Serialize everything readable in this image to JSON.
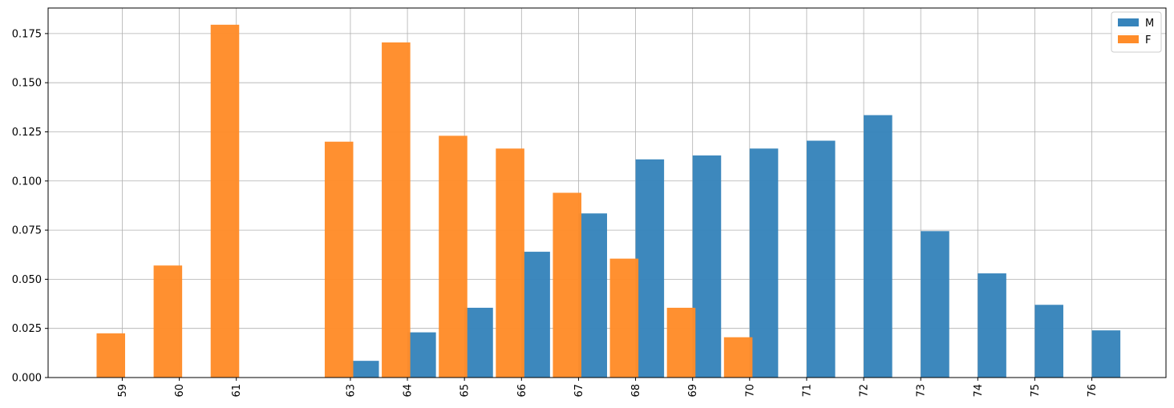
{
  "chart_data": {
    "type": "bar",
    "x": [
      59,
      60,
      61,
      63,
      64,
      65,
      66,
      67,
      68,
      69,
      70,
      71,
      72,
      73,
      74,
      75,
      76
    ],
    "series": [
      {
        "name": "M",
        "color": "#3784bb",
        "values": [
          0,
          0,
          0,
          0.0085,
          0.023,
          0.0355,
          0.064,
          0.0835,
          0.111,
          0.113,
          0.1165,
          0.1205,
          0.1335,
          0.0745,
          0.053,
          0.037,
          0.024
        ]
      },
      {
        "name": "F",
        "color": "#ff8c29",
        "values": [
          0.0225,
          0.057,
          0.1795,
          0.12,
          0.1705,
          0.123,
          0.1165,
          0.094,
          0.0605,
          0.0355,
          0.0205,
          0,
          0,
          0,
          0,
          0,
          0
        ]
      }
    ],
    "xlim": [
      57.7,
      77.3
    ],
    "ylim": [
      0,
      0.188
    ],
    "yticks": [
      0.0,
      0.025,
      0.05,
      0.075,
      0.1,
      0.125,
      0.15,
      0.175
    ],
    "ytick_labels": [
      "0.000",
      "0.025",
      "0.050",
      "0.075",
      "0.100",
      "0.125",
      "0.150",
      "0.175"
    ],
    "xtick_labels": [
      "59",
      "60",
      "61",
      "63",
      "64",
      "65",
      "66",
      "67",
      "68",
      "69",
      "70",
      "71",
      "72",
      "73",
      "74",
      "75",
      "76"
    ],
    "grid": true,
    "legend_position": "top-right",
    "title": "",
    "xlabel": "",
    "ylabel": ""
  }
}
